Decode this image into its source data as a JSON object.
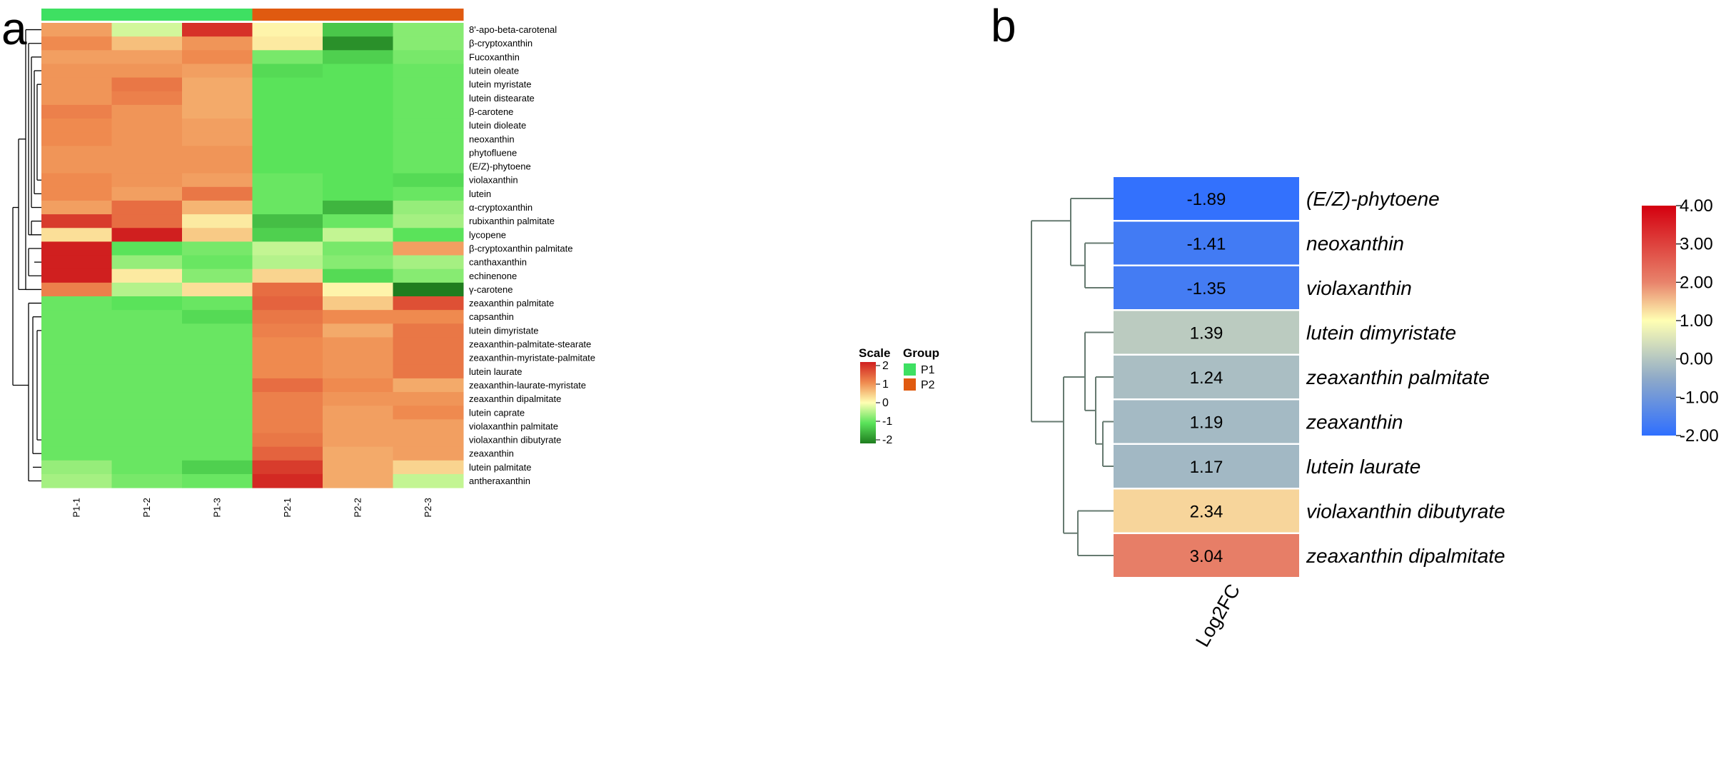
{
  "panels": {
    "a": "a",
    "b": "b"
  },
  "colors": {
    "group_P1": "#3ee062",
    "group_P2": "#e05a10",
    "dendrogram_a": "#000000",
    "dendrogram_b": "#667a70",
    "scale_a": [
      "#1f7d1f",
      "#5ae35a",
      "#ffffb3",
      "#ef8a4f",
      "#d01f1f"
    ],
    "scale_b": [
      "#2f6fff",
      "#8faac8",
      "#ffffb3",
      "#e8836b",
      "#d4000f"
    ]
  },
  "chart_data": [
    {
      "type": "heatmap",
      "panel": "a",
      "columns": [
        "P1-1",
        "P1-2",
        "P1-3",
        "P2-1",
        "P2-2",
        "P2-3"
      ],
      "column_groups": [
        "P1",
        "P1",
        "P1",
        "P2",
        "P2",
        "P2"
      ],
      "rows": [
        "8'-apo-beta-carotenal",
        "β-cryptoxanthin",
        "Fucoxanthin",
        "lutein oleate",
        "lutein myristate",
        "lutein distearate",
        "β-carotene",
        "lutein dioleate",
        "neoxanthin",
        "phytofluene",
        "(E/Z)-phytoene",
        "violaxanthin",
        "lutein",
        "α-cryptoxanthin",
        "rubixanthin palmitate",
        "lycopene",
        "β-cryptoxanthin palmitate",
        "canthaxanthin",
        "echinenone",
        "γ-carotene",
        "zeaxanthin palmitate",
        "capsanthin",
        "lutein dimyristate",
        "zeaxanthin-palmitate-stearate",
        "zeaxanthin-myristate-palmitate",
        "lutein laurate",
        "zeaxanthin-laurate-myristate",
        "zeaxanthin dipalmitate",
        "lutein caprate",
        "violaxanthin palmitate",
        "violaxanthin dibutyrate",
        "zeaxanthin",
        "lutein palmitate",
        "antheraxanthin"
      ],
      "values": [
        [
          0.9,
          -0.3,
          2.0,
          0.1,
          -1.4,
          -0.8
        ],
        [
          1.1,
          0.6,
          1.0,
          0.2,
          -2.0,
          -0.8
        ],
        [
          0.9,
          0.9,
          1.1,
          -0.9,
          -1.3,
          -0.9
        ],
        [
          1.0,
          1.0,
          0.9,
          -1.2,
          -1.1,
          -1.0
        ],
        [
          1.0,
          1.3,
          0.8,
          -1.1,
          -1.1,
          -1.0
        ],
        [
          1.0,
          1.2,
          0.8,
          -1.1,
          -1.1,
          -1.0
        ],
        [
          1.2,
          1.0,
          0.8,
          -1.1,
          -1.1,
          -1.0
        ],
        [
          1.1,
          1.0,
          0.9,
          -1.1,
          -1.1,
          -1.0
        ],
        [
          1.1,
          1.0,
          0.9,
          -1.1,
          -1.1,
          -1.0
        ],
        [
          1.0,
          1.0,
          1.0,
          -1.1,
          -1.1,
          -1.0
        ],
        [
          1.0,
          1.0,
          1.0,
          -1.1,
          -1.1,
          -1.0
        ],
        [
          1.1,
          1.0,
          0.9,
          -1.0,
          -1.1,
          -1.2
        ],
        [
          1.1,
          0.9,
          1.3,
          -1.0,
          -1.1,
          -1.0
        ],
        [
          0.9,
          1.4,
          0.7,
          -1.0,
          -1.6,
          -0.7
        ],
        [
          1.9,
          1.4,
          0.2,
          -1.5,
          -1.0,
          -0.6
        ],
        [
          0.3,
          2.2,
          0.5,
          -1.3,
          -0.4,
          -1.1
        ],
        [
          2.2,
          -1.1,
          -0.9,
          -0.4,
          -0.9,
          0.9
        ],
        [
          2.7,
          -0.7,
          -1.0,
          -0.5,
          -0.8,
          -0.6
        ],
        [
          2.2,
          0.2,
          -0.8,
          0.4,
          -1.2,
          -0.8
        ],
        [
          1.2,
          -0.5,
          0.3,
          1.4,
          0.1,
          -2.2
        ],
        [
          -1.0,
          -1.1,
          -1.0,
          1.5,
          0.5,
          1.7
        ],
        [
          -1.0,
          -1.0,
          -1.2,
          1.3,
          1.1,
          1.1
        ],
        [
          -1.0,
          -1.0,
          -1.0,
          1.2,
          0.8,
          1.3
        ],
        [
          -1.0,
          -1.0,
          -1.0,
          1.1,
          1.0,
          1.3
        ],
        [
          -1.0,
          -1.0,
          -1.0,
          1.1,
          1.0,
          1.3
        ],
        [
          -1.0,
          -1.0,
          -1.0,
          1.1,
          1.0,
          1.3
        ],
        [
          -1.0,
          -1.0,
          -1.0,
          1.4,
          1.1,
          0.8
        ],
        [
          -1.0,
          -1.0,
          -1.0,
          1.2,
          1.0,
          1.0
        ],
        [
          -1.0,
          -1.0,
          -1.0,
          1.2,
          0.9,
          1.1
        ],
        [
          -1.0,
          -1.0,
          -1.0,
          1.2,
          0.9,
          0.9
        ],
        [
          -1.0,
          -1.0,
          -1.0,
          1.3,
          0.9,
          0.9
        ],
        [
          -1.0,
          -1.0,
          -1.0,
          1.5,
          0.8,
          0.9
        ],
        [
          -0.7,
          -1.0,
          -1.3,
          1.9,
          0.8,
          0.4
        ],
        [
          -0.6,
          -0.9,
          -1.0,
          2.1,
          0.8,
          -0.4
        ]
      ],
      "dendrogram_order": "rows clustered (P1-high cluster above, P2-high cluster below)",
      "scale_legend": {
        "title": "Scale",
        "ticks": [
          "2",
          "1",
          "0",
          "-1",
          "-2"
        ]
      },
      "group_legend": {
        "title": "Group",
        "entries": [
          "P1",
          "P2"
        ]
      }
    },
    {
      "type": "heatmap",
      "panel": "b",
      "columns": [
        "Log2FC"
      ],
      "rows": [
        "(E/Z)-phytoene",
        "neoxanthin",
        "violaxanthin",
        "lutein dimyristate",
        "zeaxanthin palmitate",
        "zeaxanthin",
        "lutein laurate",
        "violaxanthin dibutyrate",
        "zeaxanthin dipalmitate"
      ],
      "values": [
        -1.89,
        -1.41,
        -1.35,
        1.39,
        1.24,
        1.19,
        1.17,
        2.34,
        3.04
      ],
      "value_labels": [
        "-1.89",
        "-1.41",
        "-1.35",
        "1.39",
        "1.24",
        "1.19",
        "1.17",
        "2.34",
        "3.04"
      ],
      "colorbar": {
        "ticks": [
          "4.00",
          "3.00",
          "2.00",
          "1.00",
          "0.00",
          "-1.00",
          "-2.00"
        ],
        "range": [
          -2,
          4
        ]
      }
    }
  ]
}
